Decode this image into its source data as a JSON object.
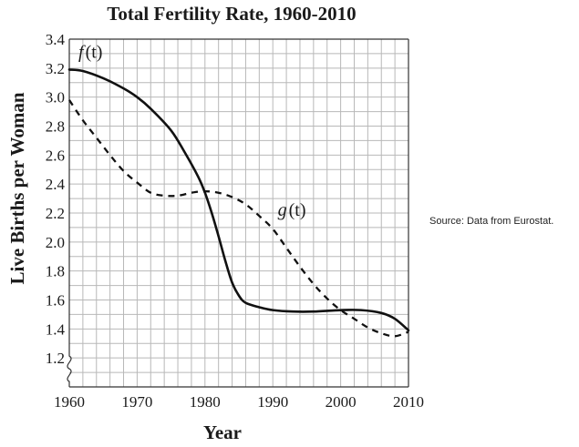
{
  "chart_data": {
    "type": "line",
    "title": "Total Fertility Rate, 1960-2010",
    "xlabel": "Year",
    "ylabel": "Live Births per Woman",
    "xlim": [
      1960,
      2010
    ],
    "ylim": [
      1.0,
      3.4
    ],
    "x_ticks": [
      "1960",
      "1970",
      "1980",
      "1990",
      "2000",
      "2010"
    ],
    "y_ticks": [
      "1.2",
      "1.4",
      "1.6",
      "1.8",
      "2.0",
      "2.2",
      "2.4",
      "2.6",
      "2.8",
      "3.0",
      "3.2",
      "3.4"
    ],
    "axis_break": true,
    "grid": true,
    "series": [
      {
        "name": "f(t)",
        "name_main": "f",
        "name_arg": "(t)",
        "style": "solid",
        "x": [
          1960,
          1962,
          1965,
          1968,
          1970,
          1972,
          1975,
          1977,
          1979,
          1980,
          1981,
          1982,
          1983,
          1984,
          1985,
          1986,
          1988,
          1990,
          1993,
          1996,
          2000,
          2003,
          2006,
          2008,
          2010
        ],
        "y": [
          3.19,
          3.18,
          3.13,
          3.06,
          3.0,
          2.92,
          2.77,
          2.62,
          2.45,
          2.34,
          2.2,
          2.04,
          1.87,
          1.72,
          1.63,
          1.58,
          1.55,
          1.53,
          1.52,
          1.52,
          1.53,
          1.53,
          1.51,
          1.47,
          1.39
        ]
      },
      {
        "name": "g(t)",
        "name_main": "g",
        "name_arg": "(t)",
        "style": "dashed",
        "x": [
          1960,
          1962,
          1964,
          1966,
          1968,
          1970,
          1972,
          1974,
          1976,
          1978,
          1980,
          1982,
          1984,
          1986,
          1988,
          1990,
          1992,
          1994,
          1996,
          1998,
          2000,
          2002,
          2004,
          2006,
          2008,
          2010
        ],
        "y": [
          2.98,
          2.84,
          2.72,
          2.6,
          2.49,
          2.41,
          2.34,
          2.32,
          2.32,
          2.34,
          2.35,
          2.34,
          2.31,
          2.26,
          2.18,
          2.09,
          1.96,
          1.83,
          1.71,
          1.61,
          1.53,
          1.47,
          1.41,
          1.37,
          1.35,
          1.38
        ]
      }
    ]
  },
  "source_note": "Source: Data from Eurostat."
}
